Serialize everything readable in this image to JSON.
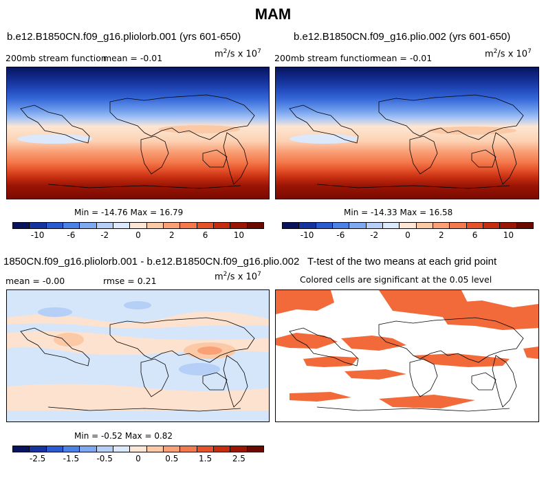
{
  "figure_title": "MAM",
  "panels": {
    "p1": {
      "title": "b.e12.B1850CN.f09_g16.pliolorb.001 (yrs 601-650)",
      "left_label": "200mb stream function",
      "mean_label": "mean =  -0.01",
      "minmax": "Min = -14.76 Max =  16.79"
    },
    "p2": {
      "title": "b.e12.B1850CN.f09_g16.plio.002 (yrs 601-650)",
      "left_label": "200mb stream function",
      "mean_label": "mean =  -0.01",
      "minmax": "Min = -14.33 Max =  16.58"
    },
    "p3": {
      "title": "1850CN.f09_g16.pliolorb.001 - b.e12.B1850CN.f09_g16.plio.002",
      "mean_label": "mean =  -0.00",
      "rmse_label": "rmse =   0.21",
      "minmax": "Min = -0.52 Max =   0.82"
    },
    "p4": {
      "title": "T-test of the two means at each grid point",
      "subtitle": "Colored cells are significant at the 0.05 level"
    }
  },
  "units": {
    "base": "m",
    "exp1": "2",
    "mid": "/s x 10",
    "exp2": "7"
  },
  "colorbar_top": {
    "ticks": [
      "-10",
      "-6",
      "-2",
      "0",
      "2",
      "6",
      "10"
    ],
    "colors": [
      "#08155e",
      "#1633a0",
      "#2a5ccf",
      "#4b82e6",
      "#7ea8f0",
      "#b5cff7",
      "#dce8fb",
      "#fde6d3",
      "#fcc9a6",
      "#f9a077",
      "#f47a4d",
      "#e5522a",
      "#c42d10",
      "#9b1505",
      "#6b0800"
    ]
  },
  "colorbar_bottom": {
    "ticks": [
      "-2.5",
      "-1.5",
      "-0.5",
      "0",
      "0.5",
      "1.5",
      "2.5"
    ],
    "colors": [
      "#08155e",
      "#1633a0",
      "#2a5ccf",
      "#4b82e6",
      "#7ea8f0",
      "#b5cff7",
      "#dce8fb",
      "#fde6d3",
      "#fcc9a6",
      "#f9a077",
      "#f47a4d",
      "#e5522a",
      "#c42d10",
      "#9b1505",
      "#6b0800"
    ]
  },
  "colors": {
    "significant": "#f26a3a",
    "diff_blue": "#d5e5fa",
    "diff_orange": "#fde3cf"
  }
}
